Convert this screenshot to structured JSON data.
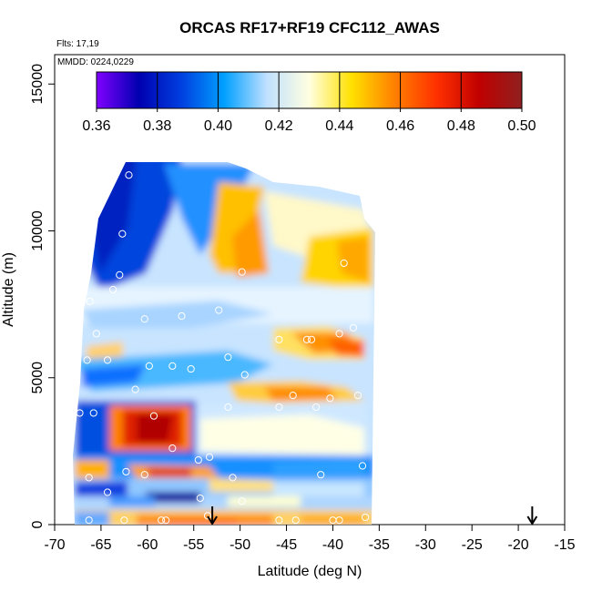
{
  "chart_data": {
    "type": "heatmap",
    "title": "ORCAS RF17+RF19 CFC112_AWAS",
    "flights_text": "Flts: 17,19",
    "dates_text": "MMDD: 0224,0229",
    "xlabel": "Latitude (deg N)",
    "ylabel": "Altitude (m)",
    "xlim": [
      -70,
      -15
    ],
    "ylim": [
      0,
      16000
    ],
    "x_ticks": [
      -70,
      -65,
      -60,
      -55,
      -50,
      -45,
      -40,
      -35,
      -30,
      -25,
      -20,
      -15
    ],
    "y_ticks": [
      0,
      5000,
      10000,
      15000
    ],
    "colorbar": {
      "ticks": [
        0.36,
        0.38,
        0.4,
        0.42,
        0.44,
        0.46,
        0.48,
        0.5
      ],
      "tick_labels": [
        "0.36",
        "0.38",
        "0.40",
        "0.42",
        "0.44",
        "0.46",
        "0.48",
        "0.50"
      ],
      "range": [
        0.36,
        0.5
      ],
      "colors": [
        "#8000ff",
        "#0000b0",
        "#0040e0",
        "#00a0ff",
        "#c0e0ff",
        "#ffffe0",
        "#ffe000",
        "#ff8000",
        "#ff3000",
        "#c00000",
        "#902020"
      ]
    },
    "sample_points": [
      {
        "lat": -62,
        "alt": 11900
      },
      {
        "lat": -62.7,
        "alt": 9900
      },
      {
        "lat": -63,
        "alt": 8500
      },
      {
        "lat": -63.7,
        "alt": 8000
      },
      {
        "lat": -66.2,
        "alt": 7600
      },
      {
        "lat": -65.5,
        "alt": 6500
      },
      {
        "lat": -66.5,
        "alt": 5600
      },
      {
        "lat": -64.3,
        "alt": 5600
      },
      {
        "lat": -60.3,
        "alt": 7000
      },
      {
        "lat": -56.3,
        "alt": 7100
      },
      {
        "lat": -52.3,
        "alt": 7300
      },
      {
        "lat": -49.8,
        "alt": 8600
      },
      {
        "lat": -38.8,
        "alt": 8900
      },
      {
        "lat": -59.8,
        "alt": 5400
      },
      {
        "lat": -57.3,
        "alt": 5400
      },
      {
        "lat": -55.3,
        "alt": 5300
      },
      {
        "lat": -51.3,
        "alt": 5700
      },
      {
        "lat": -49.5,
        "alt": 5100
      },
      {
        "lat": -45.8,
        "alt": 6300
      },
      {
        "lat": -42.8,
        "alt": 6300
      },
      {
        "lat": -42.3,
        "alt": 6300
      },
      {
        "lat": -39.3,
        "alt": 6500
      },
      {
        "lat": -37.8,
        "alt": 6700
      },
      {
        "lat": -61.3,
        "alt": 4600
      },
      {
        "lat": -59.3,
        "alt": 3700
      },
      {
        "lat": -57.3,
        "alt": 2600
      },
      {
        "lat": -54.5,
        "alt": 2200
      },
      {
        "lat": -53.3,
        "alt": 2300
      },
      {
        "lat": -51.3,
        "alt": 4000
      },
      {
        "lat": -45.8,
        "alt": 4000
      },
      {
        "lat": -44.3,
        "alt": 4400
      },
      {
        "lat": -41.8,
        "alt": 4000
      },
      {
        "lat": -40.3,
        "alt": 4300
      },
      {
        "lat": -37.3,
        "alt": 4400
      },
      {
        "lat": -67.3,
        "alt": 3800
      },
      {
        "lat": -65.8,
        "alt": 3800
      },
      {
        "lat": -66.3,
        "alt": 1600
      },
      {
        "lat": -62.3,
        "alt": 1800
      },
      {
        "lat": -60.3,
        "alt": 1700
      },
      {
        "lat": -50.8,
        "alt": 1600
      },
      {
        "lat": -41.3,
        "alt": 1700
      },
      {
        "lat": -36.8,
        "alt": 2000
      },
      {
        "lat": -64.3,
        "alt": 1100
      },
      {
        "lat": -54.3,
        "alt": 900
      },
      {
        "lat": -49.8,
        "alt": 800
      },
      {
        "lat": -53.5,
        "alt": 300
      },
      {
        "lat": -68.5,
        "alt": 300
      },
      {
        "lat": -66.3,
        "alt": 150
      },
      {
        "lat": -62.5,
        "alt": 150
      },
      {
        "lat": -58.5,
        "alt": 150
      },
      {
        "lat": -58,
        "alt": 150
      },
      {
        "lat": -45.8,
        "alt": 150
      },
      {
        "lat": -44,
        "alt": 150
      },
      {
        "lat": -40,
        "alt": 150
      },
      {
        "lat": -39.3,
        "alt": 150
      },
      {
        "lat": -36.5,
        "alt": 250
      }
    ],
    "arrows_lat": [
      -53,
      -18.5
    ]
  }
}
